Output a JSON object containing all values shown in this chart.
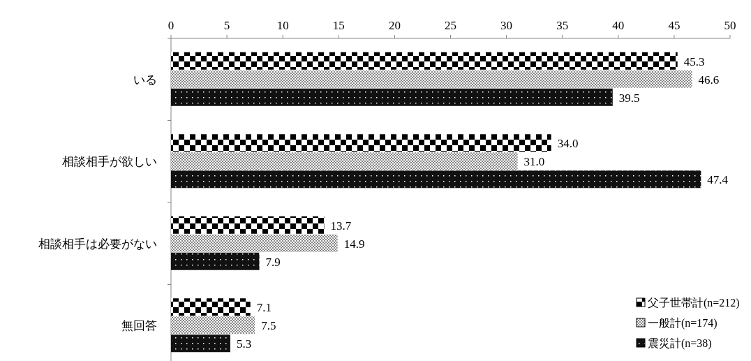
{
  "chart_data": {
    "type": "bar",
    "orientation": "horizontal",
    "categories": [
      "いる",
      "相談相手が欲しい",
      "相談相手は必要がない",
      "無回答"
    ],
    "series": [
      {
        "name": "父子世帯計(n=212)",
        "color": "#000000",
        "values": [
          45.3,
          34.0,
          13.7,
          7.1
        ],
        "value_labels": [
          "45.3",
          "34.0",
          "13.7",
          "7.1"
        ]
      },
      {
        "name": "一般計(n=174)",
        "color": "#888888",
        "values": [
          46.6,
          31.0,
          14.9,
          7.5
        ],
        "value_labels": [
          "46.6",
          "31.0",
          "14.9",
          "7.5"
        ]
      },
      {
        "name": "震災計(n=38)",
        "color": "#111111",
        "values": [
          39.5,
          47.4,
          7.9,
          5.3
        ],
        "value_labels": [
          "39.5",
          "47.4",
          "7.9",
          "5.3"
        ]
      }
    ],
    "xlim": [
      0,
      50
    ],
    "xticks": [
      0,
      5,
      10,
      15,
      20,
      25,
      30,
      35,
      40,
      45,
      50
    ],
    "legend": "bottom right",
    "grid": false
  }
}
